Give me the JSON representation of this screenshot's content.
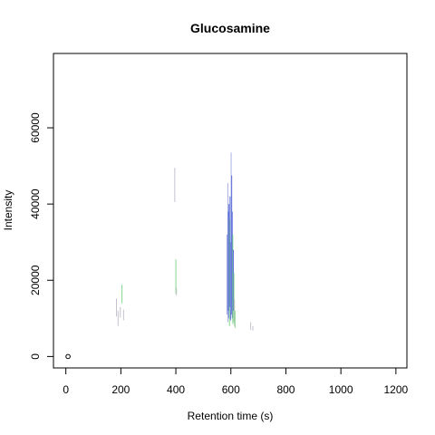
{
  "chart_data": {
    "type": "line",
    "title": "Glucosamine",
    "xlabel": "Retention time (s)",
    "ylabel": "Intensity",
    "xlim": [
      -45,
      1240
    ],
    "ylim": [
      -3000,
      79500
    ],
    "x_ticks": [
      0,
      200,
      400,
      600,
      800,
      1000,
      1200
    ],
    "y_ticks": [
      0,
      20000,
      40000,
      60000
    ],
    "grid": false,
    "legend": "none",
    "colors": {
      "blue": "#4b5fd6",
      "light_blue": "#9aa3e0",
      "green": "#6fcf7a",
      "gray": "#b9b9c4"
    },
    "series": [
      {
        "segments": [
          {
            "x": 184,
            "y0": 10500,
            "y1": 15200,
            "color": "gray"
          },
          {
            "x": 190,
            "y0": 8000,
            "y1": 12000,
            "color": "gray"
          },
          {
            "x": 198,
            "y0": 10200,
            "y1": 13000,
            "color": "gray"
          },
          {
            "x": 204,
            "y0": 14000,
            "y1": 18800,
            "color": "green"
          },
          {
            "x": 210,
            "y0": 9500,
            "y1": 12300,
            "color": "gray"
          },
          {
            "x": 396,
            "y0": 40500,
            "y1": 49500,
            "color": "gray"
          },
          {
            "x": 400,
            "y0": 16500,
            "y1": 25500,
            "color": "green"
          },
          {
            "x": 402,
            "y0": 16000,
            "y1": 18000,
            "color": "gray"
          }
        ]
      },
      {
        "segments": [
          {
            "x": 587,
            "y0": 11000,
            "y1": 32000,
            "color": "blue"
          },
          {
            "x": 589,
            "y0": 9000,
            "y1": 45500,
            "color": "light_blue"
          },
          {
            "x": 591,
            "y0": 12000,
            "y1": 38000,
            "color": "blue"
          },
          {
            "x": 593,
            "y0": 10000,
            "y1": 40000,
            "color": "blue"
          },
          {
            "x": 595,
            "y0": 8000,
            "y1": 36000,
            "color": "green"
          },
          {
            "x": 597,
            "y0": 13000,
            "y1": 42000,
            "color": "blue"
          },
          {
            "x": 599,
            "y0": 9500,
            "y1": 30000,
            "color": "blue"
          },
          {
            "x": 601,
            "y0": 12000,
            "y1": 53500,
            "color": "light_blue"
          },
          {
            "x": 603,
            "y0": 11000,
            "y1": 47500,
            "color": "blue"
          },
          {
            "x": 605,
            "y0": 10000,
            "y1": 38000,
            "color": "blue"
          },
          {
            "x": 607,
            "y0": 8500,
            "y1": 32000,
            "color": "green"
          },
          {
            "x": 609,
            "y0": 12000,
            "y1": 28000,
            "color": "blue"
          },
          {
            "x": 611,
            "y0": 9000,
            "y1": 22000,
            "color": "green"
          },
          {
            "x": 613,
            "y0": 8000,
            "y1": 15000,
            "color": "gray"
          },
          {
            "x": 615,
            "y0": 7500,
            "y1": 12000,
            "color": "green"
          },
          {
            "x": 672,
            "y0": 7000,
            "y1": 9000,
            "color": "gray"
          },
          {
            "x": 680,
            "y0": 6800,
            "y1": 8000,
            "color": "gray"
          }
        ]
      }
    ],
    "points": [
      {
        "x": 8,
        "y": 0
      }
    ]
  }
}
